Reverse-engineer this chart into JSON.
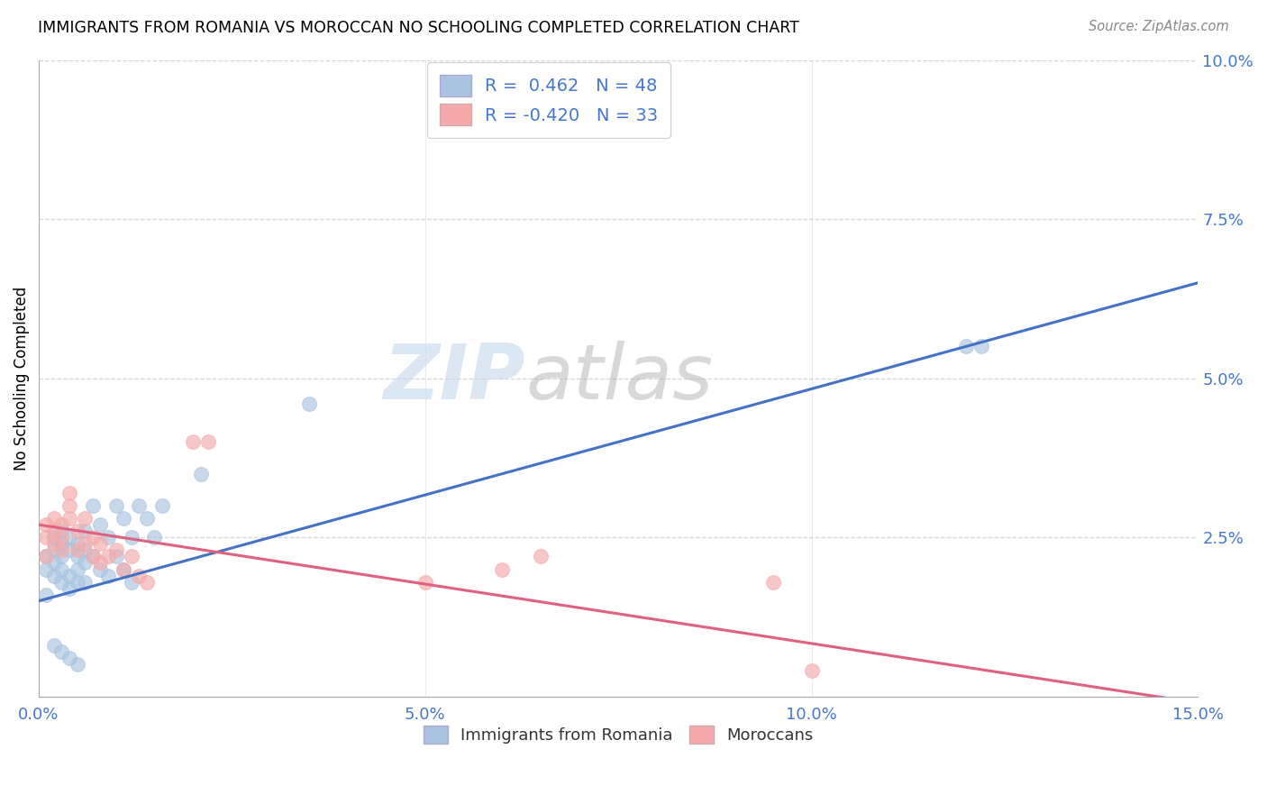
{
  "title": "IMMIGRANTS FROM ROMANIA VS MOROCCAN NO SCHOOLING COMPLETED CORRELATION CHART",
  "source": "Source: ZipAtlas.com",
  "ylabel_label": "No Schooling Completed",
  "legend_label1": "Immigrants from Romania",
  "legend_label2": "Moroccans",
  "R1": 0.462,
  "N1": 48,
  "R2": -0.42,
  "N2": 33,
  "color1": "#A8C4E0",
  "color2": "#F4AAAA",
  "line_color1": "#4472C4",
  "line_color2": "#E06080",
  "xlim": [
    0.0,
    0.15
  ],
  "ylim": [
    0.0,
    0.1
  ],
  "xticks": [
    0.0,
    0.05,
    0.1,
    0.15
  ],
  "yticks_right": [
    0.025,
    0.05,
    0.075,
    0.1
  ],
  "xticklabels": [
    "0.0%",
    "5.0%",
    "10.0%",
    "15.0%"
  ],
  "yticklabels_right": [
    "2.5%",
    "5.0%",
    "7.5%",
    "10.0%"
  ],
  "blue_x": [
    0.001,
    0.001,
    0.001,
    0.002,
    0.002,
    0.002,
    0.002,
    0.003,
    0.003,
    0.003,
    0.003,
    0.003,
    0.004,
    0.004,
    0.004,
    0.004,
    0.005,
    0.005,
    0.005,
    0.005,
    0.006,
    0.006,
    0.006,
    0.006,
    0.007,
    0.007,
    0.008,
    0.008,
    0.009,
    0.009,
    0.01,
    0.01,
    0.011,
    0.011,
    0.012,
    0.012,
    0.013,
    0.014,
    0.015,
    0.016,
    0.021,
    0.035,
    0.12,
    0.122,
    0.002,
    0.003,
    0.004,
    0.005
  ],
  "blue_y": [
    0.02,
    0.022,
    0.016,
    0.023,
    0.021,
    0.025,
    0.019,
    0.024,
    0.022,
    0.018,
    0.026,
    0.02,
    0.025,
    0.023,
    0.019,
    0.017,
    0.024,
    0.022,
    0.02,
    0.018,
    0.023,
    0.021,
    0.026,
    0.018,
    0.03,
    0.022,
    0.027,
    0.02,
    0.025,
    0.019,
    0.03,
    0.022,
    0.028,
    0.02,
    0.025,
    0.018,
    0.03,
    0.028,
    0.025,
    0.03,
    0.035,
    0.046,
    0.055,
    0.055,
    0.008,
    0.007,
    0.006,
    0.005
  ],
  "pink_x": [
    0.001,
    0.001,
    0.001,
    0.002,
    0.002,
    0.002,
    0.003,
    0.003,
    0.003,
    0.004,
    0.004,
    0.005,
    0.005,
    0.006,
    0.006,
    0.007,
    0.007,
    0.008,
    0.008,
    0.009,
    0.01,
    0.011,
    0.012,
    0.013,
    0.014,
    0.02,
    0.022,
    0.05,
    0.06,
    0.065,
    0.095,
    0.1,
    0.004
  ],
  "pink_y": [
    0.025,
    0.027,
    0.022,
    0.026,
    0.024,
    0.028,
    0.025,
    0.023,
    0.027,
    0.03,
    0.028,
    0.026,
    0.023,
    0.028,
    0.024,
    0.025,
    0.022,
    0.024,
    0.021,
    0.022,
    0.023,
    0.02,
    0.022,
    0.019,
    0.018,
    0.04,
    0.04,
    0.018,
    0.02,
    0.022,
    0.018,
    0.004,
    0.032
  ],
  "background_color": "#FFFFFF",
  "grid_color": "#CCCCCC",
  "watermark_color": "#DDEEFF"
}
